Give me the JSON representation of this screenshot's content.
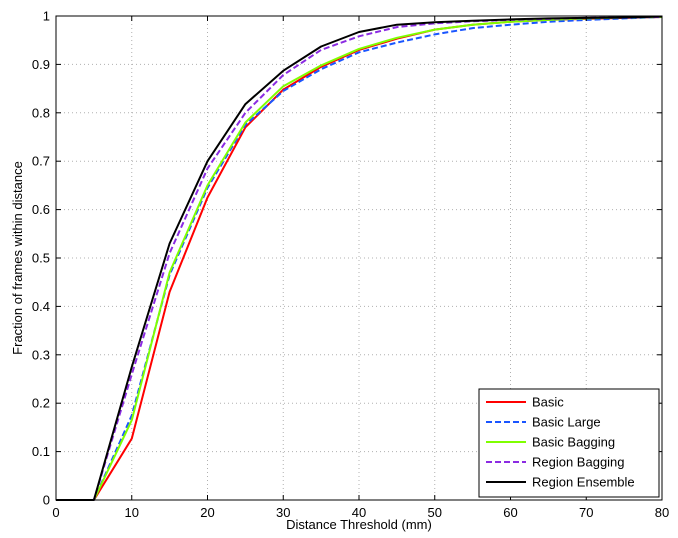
{
  "chart_data": {
    "type": "line",
    "title": "",
    "xlabel": "Distance Threshold (mm)",
    "ylabel": "Fraction of frames within distance",
    "xlim": [
      0,
      80
    ],
    "ylim": [
      0,
      1
    ],
    "xticks": [
      0,
      10,
      20,
      30,
      40,
      50,
      60,
      70,
      80
    ],
    "xtick_labels": [
      "0",
      "10",
      "20",
      "30",
      "40",
      "50",
      "60",
      "70",
      "80"
    ],
    "yticks": [
      0,
      0.1,
      0.2,
      0.3,
      0.4,
      0.5,
      0.6,
      0.7,
      0.8,
      0.9,
      1
    ],
    "ytick_labels": [
      "0",
      "0.1",
      "0.2",
      "0.3",
      "0.4",
      "0.5",
      "0.6",
      "0.7",
      "0.8",
      "0.9",
      "1"
    ],
    "grid": true,
    "legend_position": "bottom-right",
    "x": [
      0,
      5,
      10,
      15,
      20,
      25,
      30,
      35,
      40,
      45,
      50,
      55,
      60,
      65,
      70,
      75,
      80
    ],
    "series": [
      {
        "name": "Basic",
        "color": "#ff0000",
        "dash": "solid",
        "values": [
          0,
          0,
          0.127,
          0.43,
          0.625,
          0.77,
          0.848,
          0.895,
          0.93,
          0.953,
          0.972,
          0.982,
          0.988,
          0.992,
          0.994,
          0.996,
          0.998
        ]
      },
      {
        "name": "Basic Large",
        "color": "#1a55ff",
        "dash": "dashed",
        "values": [
          0,
          0,
          0.175,
          0.465,
          0.645,
          0.775,
          0.845,
          0.89,
          0.925,
          0.945,
          0.962,
          0.975,
          0.982,
          0.988,
          0.992,
          0.995,
          0.998
        ]
      },
      {
        "name": "Basic Bagging",
        "color": "#7fff00",
        "dash": "solid",
        "values": [
          0,
          0,
          0.165,
          0.47,
          0.65,
          0.78,
          0.855,
          0.898,
          0.932,
          0.955,
          0.972,
          0.982,
          0.988,
          0.992,
          0.995,
          0.997,
          0.998
        ]
      },
      {
        "name": "Region Bagging",
        "color": "#8b2be2",
        "dash": "dashed",
        "values": [
          0,
          0,
          0.26,
          0.51,
          0.685,
          0.8,
          0.878,
          0.93,
          0.958,
          0.977,
          0.985,
          0.989,
          0.992,
          0.994,
          0.996,
          0.997,
          0.998
        ]
      },
      {
        "name": "Region Ensemble",
        "color": "#000000",
        "dash": "solid",
        "values": [
          0,
          0,
          0.275,
          0.53,
          0.7,
          0.818,
          0.887,
          0.937,
          0.967,
          0.982,
          0.987,
          0.99,
          0.993,
          0.995,
          0.996,
          0.997,
          0.999
        ]
      }
    ]
  }
}
